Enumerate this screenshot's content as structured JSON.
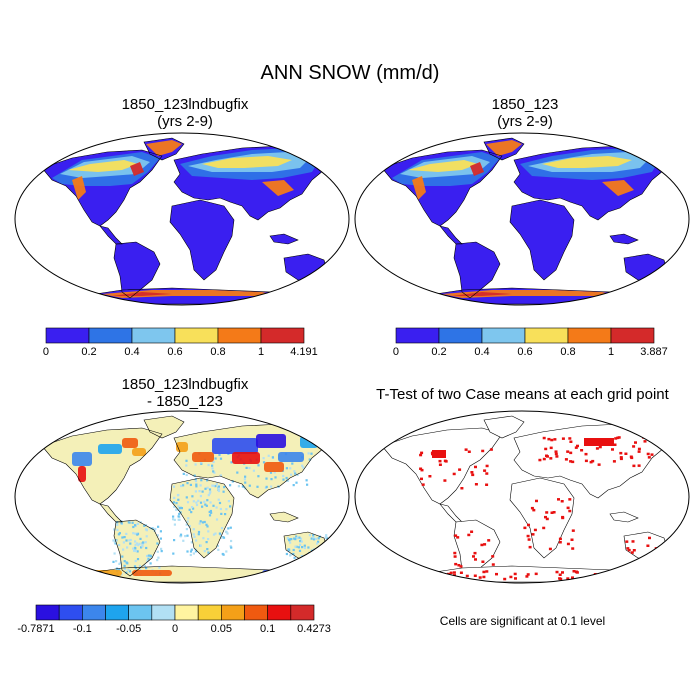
{
  "title": "ANN SNOW (mm/d)",
  "panels": [
    {
      "id": "case1",
      "title_line1": "1850_123lndbugfix",
      "title_line2": "(yrs 2-9)",
      "colors": [
        "#3a1ff0",
        "#2e74e6",
        "#7ec6ee",
        "#f8e05a",
        "#f47a18",
        "#d42a2a"
      ],
      "tick_labels": [
        "0",
        "0.2",
        "0.4",
        "0.6",
        "0.8",
        "1",
        "4.191"
      ]
    },
    {
      "id": "case2",
      "title_line1": "1850_123",
      "title_line2": "(yrs 2-9)",
      "colors": [
        "#3a1ff0",
        "#2e74e6",
        "#7ec6ee",
        "#f8e05a",
        "#f47a18",
        "#d42a2a"
      ],
      "tick_labels": [
        "0",
        "0.2",
        "0.4",
        "0.6",
        "0.8",
        "1",
        "3.887"
      ]
    },
    {
      "id": "diff",
      "title_line1": "1850_123lndbugfix",
      "title_line2": "- 1850_123",
      "colors": [
        "#2a10e0",
        "#2e4ef0",
        "#3c86ec",
        "#1ea4ee",
        "#6cc4f0",
        "#b2e0f4",
        "#fff4a0",
        "#f8d038",
        "#f4a018",
        "#f05a10",
        "#e81010",
        "#d42a2a"
      ],
      "tick_labels": [
        "-0.7871",
        "-0.1",
        "-0.05",
        "0",
        "0.05",
        "0.1",
        "0.4273"
      ]
    },
    {
      "id": "ttest",
      "title_line1": "T-Test of two Case means at each grid point",
      "note": "Cells are significant at 0.1 level",
      "significance_color": "#e81010"
    }
  ]
}
